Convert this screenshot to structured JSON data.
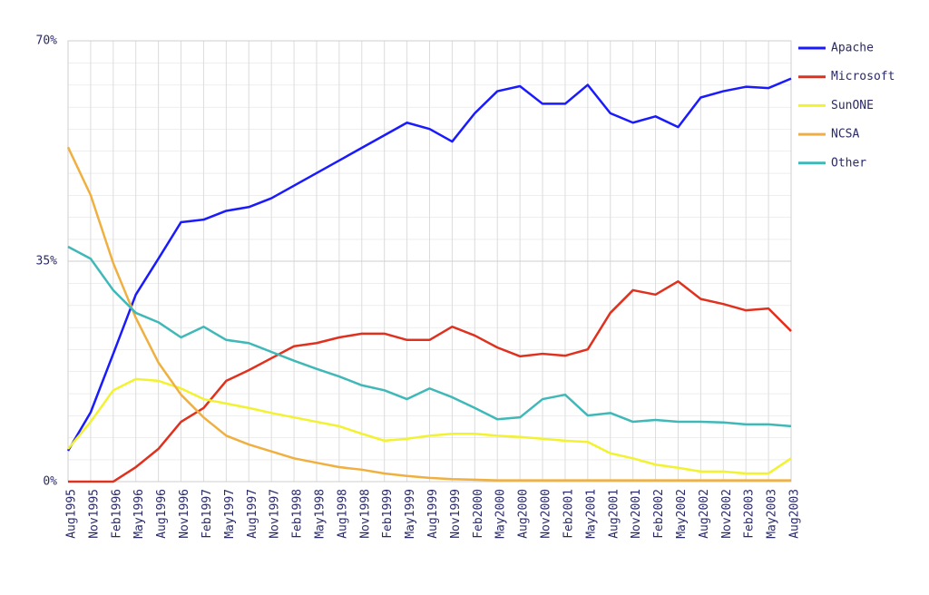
{
  "chart_data": {
    "type": "line",
    "categories": [
      "Aug1995",
      "Nov1995",
      "Feb1996",
      "May1996",
      "Aug1996",
      "Nov1996",
      "Feb1997",
      "May1997",
      "Aug1997",
      "Nov1997",
      "Feb1998",
      "May1998",
      "Aug1998",
      "Nov1998",
      "Feb1999",
      "May1999",
      "Aug1999",
      "Nov1999",
      "Feb2000",
      "May2000",
      "Aug2000",
      "Nov2000",
      "Feb2001",
      "May2001",
      "Aug2001",
      "Nov2001",
      "Feb2002",
      "May2002",
      "Aug2002",
      "Nov2002",
      "Feb2003",
      "May2003",
      "Aug2003"
    ],
    "series": [
      {
        "name": "Apache",
        "color": "#1a1aff",
        "values": [
          4.9,
          11,
          20.3,
          29.7,
          35.4,
          41.2,
          41.6,
          43,
          43.6,
          45,
          47,
          49,
          51,
          53,
          55,
          57,
          56,
          54,
          58.5,
          62,
          62.8,
          60,
          60,
          63,
          58.5,
          57,
          58,
          56.3,
          61,
          62,
          62.7,
          62.5,
          64
        ]
      },
      {
        "name": "Microsoft",
        "color": "#e0301e",
        "values": [
          0,
          0,
          0,
          2.3,
          5.2,
          9.5,
          11.7,
          16,
          17.7,
          19.6,
          21.5,
          22,
          22.9,
          23.5,
          23.5,
          22.5,
          22.5,
          24.6,
          23.2,
          21.3,
          19.9,
          20.3,
          20,
          21,
          26.8,
          30.4,
          29.7,
          31.8,
          29,
          28.2,
          27.2,
          27.5,
          23.9
        ]
      },
      {
        "name": "SunONE",
        "color": "#f2f230",
        "values": [
          5.2,
          9.5,
          14.5,
          16.3,
          16,
          14.8,
          13.1,
          12.4,
          11.7,
          10.9,
          10.2,
          9.5,
          8.8,
          7.6,
          6.5,
          6.8,
          7.3,
          7.6,
          7.6,
          7.3,
          7.1,
          6.8,
          6.5,
          6.3,
          4.5,
          3.7,
          2.7,
          2.2,
          1.6,
          1.6,
          1.3,
          1.3,
          3.7
        ]
      },
      {
        "name": "NCSA",
        "color": "#f0b040",
        "values": [
          53.1,
          45.5,
          34.7,
          26,
          18.9,
          13.8,
          10.2,
          7.3,
          5.9,
          4.8,
          3.7,
          3,
          2.3,
          1.9,
          1.3,
          0.9,
          0.6,
          0.4,
          0.3,
          0.2,
          0.2,
          0.2,
          0.2,
          0.2,
          0.2,
          0.2,
          0.2,
          0.2,
          0.2,
          0.2,
          0.2,
          0.2,
          0.2
        ]
      },
      {
        "name": "Other",
        "color": "#40b8b8",
        "values": [
          37.3,
          35.4,
          30.4,
          26.8,
          25.3,
          22.9,
          24.6,
          22.5,
          22,
          20.6,
          19.2,
          17.9,
          16.7,
          15.3,
          14.5,
          13.1,
          14.8,
          13.4,
          11.7,
          9.9,
          10.2,
          13.1,
          13.8,
          10.5,
          10.9,
          9.5,
          9.8,
          9.5,
          9.5,
          9.4,
          9.1,
          9.1,
          8.8
        ]
      }
    ],
    "ylim": [
      0,
      70
    ],
    "yticks": [
      {
        "value": 0,
        "label": "0%"
      },
      {
        "value": 35,
        "label": "35%"
      },
      {
        "value": 70,
        "label": "70%"
      }
    ],
    "grid": true,
    "legend": "right"
  }
}
